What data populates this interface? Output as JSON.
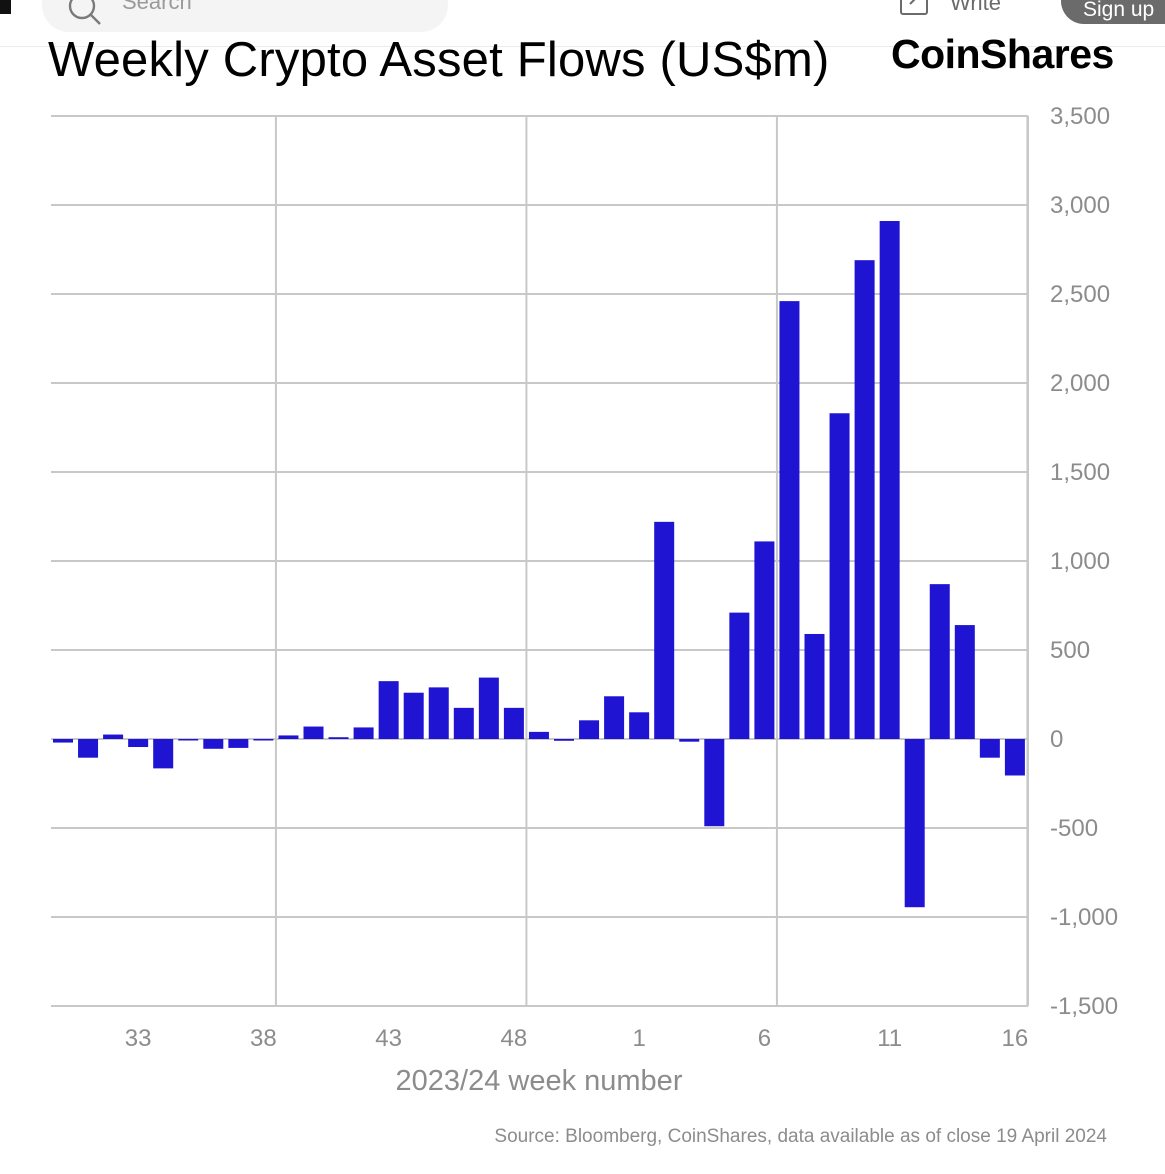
{
  "header": {
    "search_placeholder": "Search",
    "write_label": "Write",
    "signup_label": "Sign up"
  },
  "colors": {
    "bar": "#1f14d2",
    "grid": "#c8c8c8",
    "axis_text": "#8c8c8c"
  },
  "chart_data": {
    "type": "bar",
    "title": "Weekly Crypto Asset Flows (US$m)",
    "brand": "CoinShares",
    "xlabel": "2023/24 week number",
    "ylabel": "",
    "y_axis_side": "right",
    "ylim": [
      -1500,
      3500
    ],
    "yticks": [
      3500,
      3000,
      2500,
      2000,
      1500,
      1000,
      500,
      0,
      -500,
      -1000,
      -1500
    ],
    "ytick_labels": [
      "3,500",
      "3,000",
      "2,500",
      "2,000",
      "1,500",
      "1,000",
      "500",
      "0",
      "-500",
      "-1,000",
      "-1,500"
    ],
    "xtick_labels": [
      "33",
      "38",
      "43",
      "48",
      "1",
      "6",
      "11",
      "16"
    ],
    "categories": [
      "30",
      "31",
      "32",
      "33",
      "34",
      "35",
      "36",
      "37",
      "38",
      "39",
      "40",
      "41",
      "42",
      "43",
      "44",
      "45",
      "46",
      "47",
      "48",
      "49",
      "50",
      "51",
      "52",
      "1",
      "2",
      "3",
      "4",
      "5",
      "6",
      "7",
      "8",
      "9",
      "10",
      "11",
      "12",
      "13",
      "14",
      "15",
      "16"
    ],
    "values": [
      -20,
      -105,
      25,
      -45,
      -165,
      0,
      -55,
      -50,
      -5,
      20,
      70,
      10,
      65,
      325,
      260,
      290,
      175,
      345,
      175,
      40,
      -10,
      105,
      240,
      150,
      1220,
      -15,
      -490,
      710,
      1110,
      2460,
      590,
      1830,
      2690,
      2910,
      -945,
      870,
      640,
      -105,
      -205
    ],
    "grid": true,
    "source": "Source: Bloomberg, CoinShares, data available as of close 19 April 2024"
  }
}
